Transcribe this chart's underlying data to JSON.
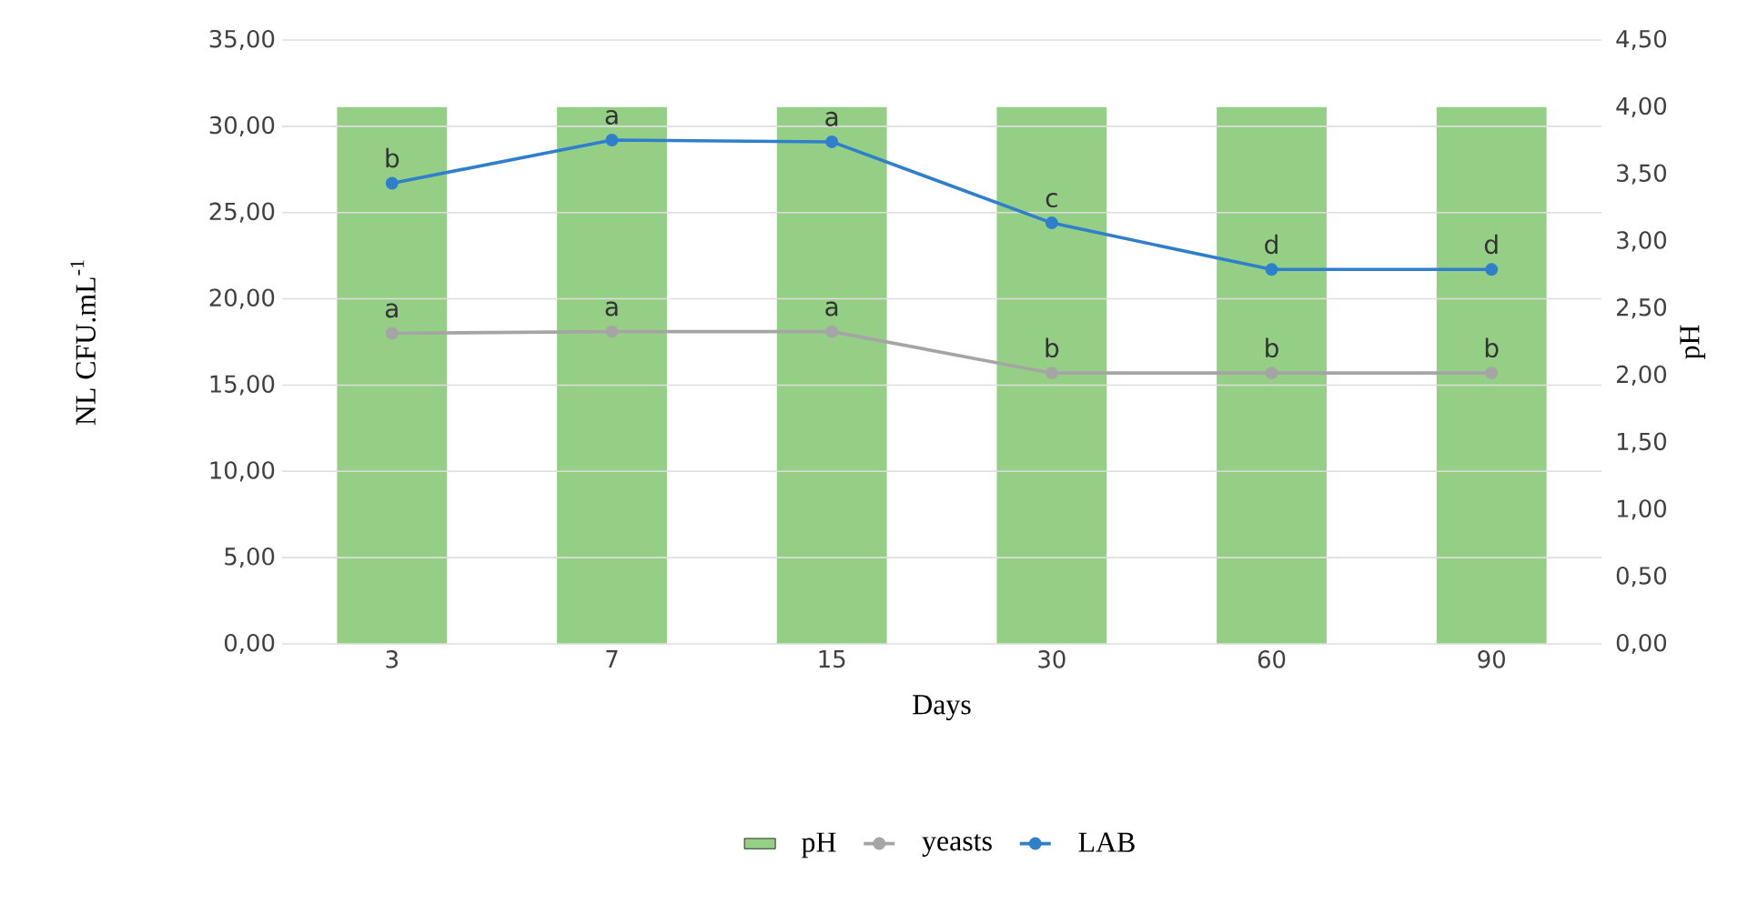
{
  "chart_data": {
    "type": "line",
    "xlabel": "Days",
    "ylabel": "NL CFU.mL$^{-1}$",
    "y2label": "pH",
    "categories": [
      "3",
      "7",
      "15",
      "30",
      "60",
      "90"
    ],
    "series": [
      {
        "name": "pH",
        "type": "bar",
        "axis": "y2",
        "color": "#95cf85",
        "values": [
          4.0,
          4.0,
          4.0,
          4.0,
          4.0,
          4.0
        ]
      },
      {
        "name": "yeasts",
        "color": "#a5a5a5",
        "values": [
          18.0,
          18.1,
          18.1,
          15.7,
          15.7,
          15.7
        ]
      },
      {
        "name": "LAB",
        "color": "#2f7fcc",
        "values": [
          26.7,
          29.2,
          29.1,
          24.4,
          21.7,
          21.7
        ]
      }
    ],
    "ylim": [
      0,
      35
    ],
    "yticks": [
      {
        "value": 0,
        "label": "0,00"
      },
      {
        "value": 5,
        "label": "5,00"
      },
      {
        "value": 10,
        "label": "10,00"
      },
      {
        "value": 15,
        "label": "15,00"
      },
      {
        "value": 20,
        "label": "20,00"
      },
      {
        "value": 25,
        "label": "25,00"
      },
      {
        "value": 30,
        "label": "30,00"
      },
      {
        "value": 35,
        "label": "35,00"
      }
    ],
    "y2lim": [
      0,
      4.5
    ],
    "y2ticks": [
      {
        "value": 0,
        "label": "0,00"
      },
      {
        "value": 0.5,
        "label": "0,50"
      },
      {
        "value": 1,
        "label": "1,00"
      },
      {
        "value": 1.5,
        "label": "1,50"
      },
      {
        "value": 2,
        "label": "2,00"
      },
      {
        "value": 2.5,
        "label": "2,50"
      },
      {
        "value": 3,
        "label": "3,00"
      },
      {
        "value": 3.5,
        "label": "3,50"
      },
      {
        "value": 4,
        "label": "4,00"
      },
      {
        "value": 4.5,
        "label": "4,50"
      }
    ],
    "annotations": [
      {
        "text": "b",
        "x": "3",
        "y": 26.7
      },
      {
        "text": "a",
        "x": "7",
        "y": 29.2
      },
      {
        "text": "a",
        "x": "15",
        "y": 29.1
      },
      {
        "text": "c",
        "x": "30",
        "y": 24.4
      },
      {
        "text": "d",
        "x": "60",
        "y": 21.7
      },
      {
        "text": "d",
        "x": "90",
        "y": 21.7
      },
      {
        "text": "a",
        "x": "3",
        "y": 18.0
      },
      {
        "text": "a",
        "x": "7",
        "y": 18.1
      },
      {
        "text": "a",
        "x": "15",
        "y": 18.1
      },
      {
        "text": "b",
        "x": "30",
        "y": 15.7
      },
      {
        "text": "b",
        "x": "60",
        "y": 15.7
      },
      {
        "text": "b",
        "x": "90",
        "y": 15.7
      }
    ],
    "grid": "y",
    "legend": "bottom",
    "marker": "circle",
    "line_style": "solid"
  }
}
